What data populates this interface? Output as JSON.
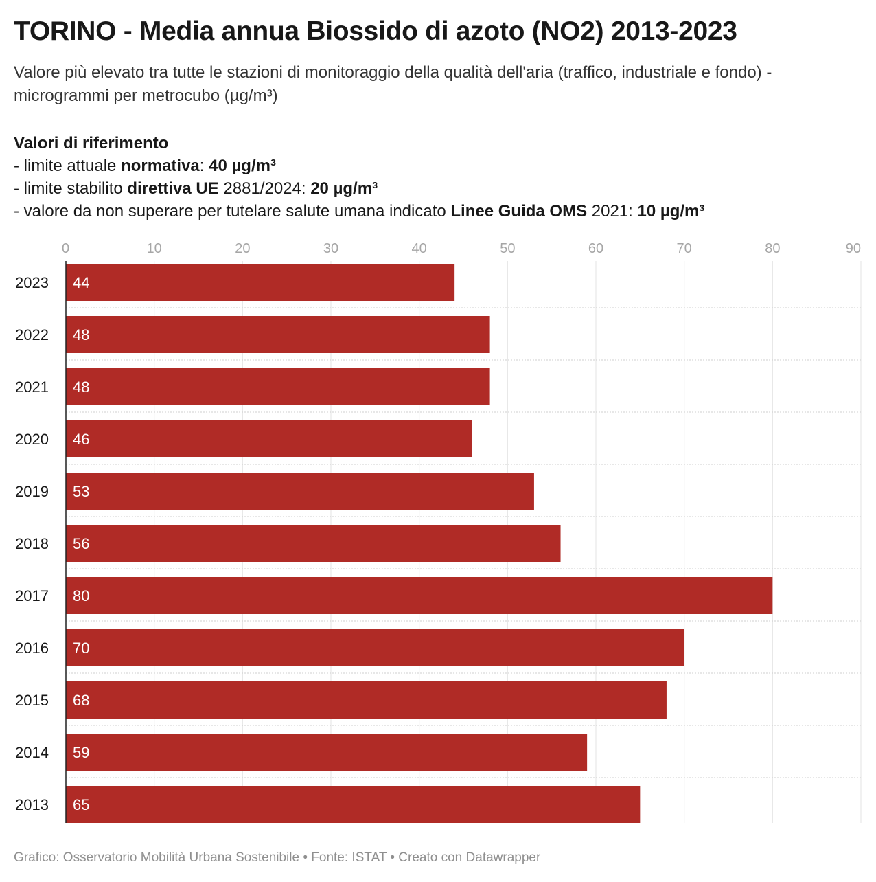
{
  "title": "TORINO - Media annua Biossido di azoto (NO2) 2013-2023",
  "subtitle": "Valore più elevato tra tutte le stazioni di monitoraggio della qualità dell'aria (traffico, industriale e fondo) - microgrammi per metrocubo (µg/m³)",
  "references": {
    "heading": "Valori di riferimento",
    "items": [
      {
        "prefix": "- limite attuale ",
        "strong": "normativa",
        "middle": ": ",
        "value": "40 µg/m³"
      },
      {
        "prefix": "- limite stabilito ",
        "strong": "direttiva UE",
        "middle": " 2881/2024: ",
        "value": "20 µg/m³"
      },
      {
        "prefix": "- valore da non superare per tutelare salute umana indicato ",
        "strong": "Linee Guida OMS",
        "middle": " 2021: ",
        "value": "10 µg/m³"
      }
    ]
  },
  "chart_data": {
    "type": "bar",
    "orientation": "horizontal",
    "categories": [
      "2023",
      "2022",
      "2021",
      "2020",
      "2019",
      "2018",
      "2017",
      "2016",
      "2015",
      "2014",
      "2013"
    ],
    "values": [
      44,
      48,
      48,
      46,
      53,
      56,
      80,
      70,
      68,
      59,
      65
    ],
    "xlim": [
      0,
      90
    ],
    "xticks": [
      0,
      10,
      20,
      30,
      40,
      50,
      60,
      70,
      80,
      90
    ],
    "bar_color": "#b02b26",
    "grid": true,
    "axis_position": "top"
  },
  "footer": "Grafico: Osservatorio Mobilità Urbana Sostenibile • Fonte: ISTAT • Creato con Datawrapper"
}
